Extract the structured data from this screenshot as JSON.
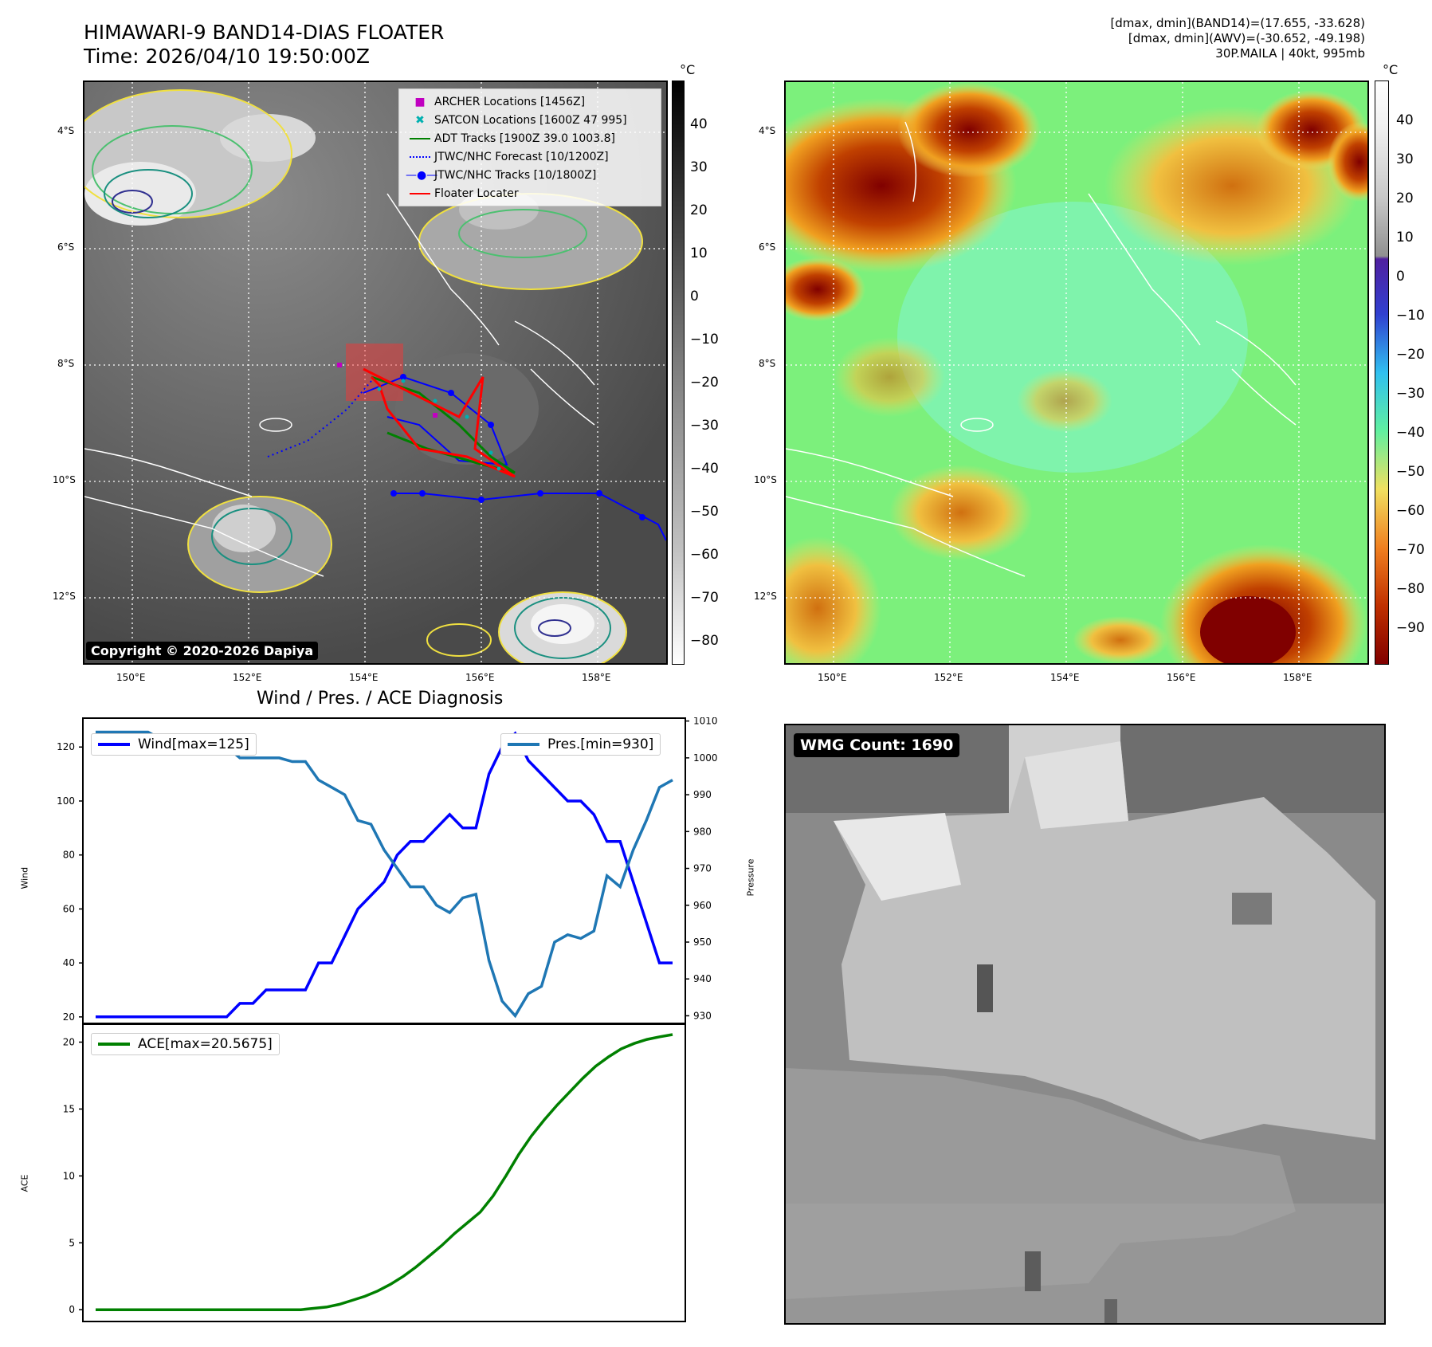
{
  "title_line1": "HIMAWARI-9 BAND14-DIAS FLOATER",
  "title_line2": "Time: 2026/04/10 19:50:00Z",
  "info_line1": "[dmax, dmin](BAND14)=(17.655, -33.628)",
  "info_line2": "[dmax, dmin](AWV)=(-30.652, -49.198)",
  "info_line3": "30P.MAILA | 40kt, 995mb",
  "unit_label": "°C",
  "lat_labels": [
    "4°S",
    "6°S",
    "8°S",
    "10°S",
    "12°S"
  ],
  "lon_labels": [
    "150°E",
    "152°E",
    "154°E",
    "156°E",
    "158°E"
  ],
  "cbar1_ticks": [
    "40",
    "30",
    "20",
    "10",
    "0",
    "−10",
    "−20",
    "−30",
    "−40",
    "−50",
    "−60",
    "−70",
    "−80"
  ],
  "cbar2_ticks": [
    "40",
    "30",
    "20",
    "10",
    "0",
    "−10",
    "−20",
    "−30",
    "−40",
    "−50",
    "−60",
    "−70",
    "−80",
    "−90"
  ],
  "legend": {
    "archer": "ARCHER Locations [1456Z]",
    "satcon": "SATCON Locations [1600Z 47 995]",
    "adt": "ADT Tracks [1900Z 39.0 1003.8]",
    "forecast": "JTWC/NHC Forecast [10/1200Z]",
    "tracks": "JTWC/NHC Tracks [10/1800Z]",
    "floater": "Floater Locater"
  },
  "copyright": "Copyright © 2020-2026 Dapiya",
  "wmg_label": "WMG Count: 1690",
  "colors": {
    "wind": "#0000ff",
    "pressure": "#1f77b4",
    "ace": "#008000",
    "track": "#0000ff",
    "floater": "#ff0000",
    "archer": "#c000c0",
    "satcon": "#00b0b0",
    "adt": "#008000"
  },
  "chart_data": [
    {
      "type": "line",
      "title": "Wind / Pres. / ACE Diagnosis",
      "ylabel": "Wind",
      "ylabel_right": "Pressure",
      "ylim": [
        17,
        131
      ],
      "ylim_right": [
        927.5,
        1011
      ],
      "yticks": [
        "20",
        "40",
        "60",
        "80",
        "100",
        "120"
      ],
      "yticks_right": [
        "930",
        "940",
        "950",
        "960",
        "970",
        "980",
        "990",
        "1000",
        "1010"
      ],
      "series": [
        {
          "name": "Wind[max=125]",
          "values": [
            20,
            20,
            20,
            20,
            20,
            20,
            20,
            20,
            20,
            20,
            20,
            25,
            25,
            30,
            30,
            30,
            30,
            40,
            40,
            50,
            60,
            65,
            70,
            80,
            85,
            85,
            90,
            95,
            90,
            90,
            110,
            120,
            125,
            115,
            110,
            105,
            100,
            100,
            95,
            85,
            85,
            70,
            55,
            40,
            40
          ]
        },
        {
          "name": "Pres.[min=930]",
          "values": [
            1007,
            1007,
            1007,
            1007,
            1007,
            1005,
            1005,
            1003,
            1003,
            1003,
            1003,
            1000,
            1000,
            1000,
            1000,
            999,
            999,
            994,
            992,
            990,
            983,
            982,
            975,
            970,
            965,
            965,
            960,
            958,
            962,
            963,
            945,
            934,
            930,
            936,
            938,
            950,
            952,
            951,
            953,
            968,
            965,
            975,
            983,
            992,
            994
          ]
        }
      ]
    },
    {
      "type": "line",
      "ylabel": "ACE",
      "ylim": [
        -1,
        21.4
      ],
      "yticks": [
        "0",
        "5",
        "10",
        "15",
        "20"
      ],
      "series": [
        {
          "name": "ACE[max=20.5675]",
          "values": [
            0,
            0,
            0,
            0,
            0,
            0,
            0,
            0,
            0,
            0,
            0,
            0,
            0,
            0,
            0,
            0,
            0,
            0.1,
            0.2,
            0.4,
            0.7,
            1.0,
            1.4,
            1.9,
            2.5,
            3.2,
            4.0,
            4.8,
            5.7,
            6.5,
            7.3,
            8.5,
            10.0,
            11.6,
            13.0,
            14.2,
            15.3,
            16.3,
            17.3,
            18.2,
            18.9,
            19.5,
            19.9,
            20.2,
            20.4,
            20.5675
          ]
        }
      ]
    }
  ]
}
